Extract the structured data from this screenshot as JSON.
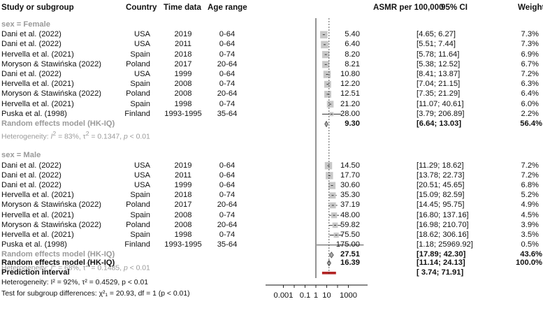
{
  "headers": {
    "study": "Study or subgroup",
    "country": "Country",
    "time": "Time data",
    "age": "Age range",
    "asmr": "ASMR per 100,000",
    "ci": "95% CI",
    "weight": "Weight"
  },
  "subgroups": [
    {
      "label": "sex = Female",
      "studies": [
        {
          "study": "Dani et al. (2022)",
          "country": "USA",
          "time": "2019",
          "age": "0-64",
          "est": "5.40",
          "ci_lo": "4.65",
          "ci_hi": "6.27",
          "weight": "7.3%",
          "est_val": 5.4,
          "lo_val": 4.65,
          "hi_val": 6.27,
          "w_val": 7.3
        },
        {
          "study": "Dani et al. (2022)",
          "country": "USA",
          "time": "2011",
          "age": "0-64",
          "est": "6.40",
          "ci_lo": "5.51",
          "ci_hi": "7.44",
          "weight": "7.3%",
          "est_val": 6.4,
          "lo_val": 5.51,
          "hi_val": 7.44,
          "w_val": 7.3
        },
        {
          "study": "Hervella et al. (2021)",
          "country": "Spain",
          "time": "2018",
          "age": "0-74",
          "est": "8.20",
          "ci_lo": "5.78",
          "ci_hi": "11.64",
          "weight": "6.9%",
          "est_val": 8.2,
          "lo_val": 5.78,
          "hi_val": 11.64,
          "w_val": 6.9
        },
        {
          "study": "Moryson & Stawińska (2022)",
          "country": "Poland",
          "time": "2017",
          "age": "20-64",
          "est": "8.21",
          "ci_lo": "5.38",
          "ci_hi": "12.52",
          "weight": "6.7%",
          "est_val": 8.21,
          "lo_val": 5.38,
          "hi_val": 12.52,
          "w_val": 6.7
        },
        {
          "study": "Dani et al. (2022)",
          "country": "USA",
          "time": "1999",
          "age": "0-64",
          "est": "10.80",
          "ci_lo": "8.41",
          "ci_hi": "13.87",
          "weight": "7.2%",
          "est_val": 10.8,
          "lo_val": 8.41,
          "hi_val": 13.87,
          "w_val": 7.2
        },
        {
          "study": "Hervella et al. (2021)",
          "country": "Spain",
          "time": "2008",
          "age": "0-74",
          "est": "12.20",
          "ci_lo": "7.04",
          "ci_hi": "21.15",
          "weight": "6.3%",
          "est_val": 12.2,
          "lo_val": 7.04,
          "hi_val": 21.15,
          "w_val": 6.3
        },
        {
          "study": "Moryson & Stawińska (2022)",
          "country": "Poland",
          "time": "2008",
          "age": "20-64",
          "est": "12.51",
          "ci_lo": "7.35",
          "ci_hi": "21.29",
          "weight": "6.4%",
          "est_val": 12.51,
          "lo_val": 7.35,
          "hi_val": 21.29,
          "w_val": 6.4
        },
        {
          "study": "Hervella et al. (2021)",
          "country": "Spain",
          "time": "1998",
          "age": "0-74",
          "est": "21.20",
          "ci_lo": "11.07",
          "ci_hi": "40.61",
          "weight": "6.0%",
          "est_val": 21.2,
          "lo_val": 11.07,
          "hi_val": 40.61,
          "w_val": 6.0
        },
        {
          "study": "Puska et al. (1998)",
          "country": "Finland",
          "time": "1993-1995",
          "age": "35-64",
          "est": "28.00",
          "ci_lo": "3.79",
          "ci_hi": "206.89",
          "weight": "2.2%",
          "est_val": 28.0,
          "lo_val": 3.79,
          "hi_val": 206.89,
          "w_val": 2.2
        }
      ],
      "model": {
        "label": "Random effects model (HK-IQ)",
        "est": "9.30",
        "ci_lo": "6.64",
        "ci_hi": "13.03",
        "weight": "56.4%",
        "est_val": 9.3,
        "lo_val": 6.64,
        "hi_val": 13.03
      },
      "het_prefix": "Heterogeneity: ",
      "het_i2": "I",
      "het_i2_val": " = 83%, τ",
      "het_tau": " = 0.1347, ",
      "het_p": "p",
      "het_p_val": " < 0.01"
    },
    {
      "label": "sex = Male",
      "studies": [
        {
          "study": "Dani et al. (2022)",
          "country": "USA",
          "time": "2019",
          "age": "0-64",
          "est": "14.50",
          "ci_lo": "11.29",
          "ci_hi": "18.62",
          "weight": "7.2%",
          "est_val": 14.5,
          "lo_val": 11.29,
          "hi_val": 18.62,
          "w_val": 7.2
        },
        {
          "study": "Dani et al. (2022)",
          "country": "USA",
          "time": "2011",
          "age": "0-64",
          "est": "17.70",
          "ci_lo": "13.78",
          "ci_hi": "22.73",
          "weight": "7.2%",
          "est_val": 17.7,
          "lo_val": 13.78,
          "hi_val": 22.73,
          "w_val": 7.2
        },
        {
          "study": "Dani et al. (2022)",
          "country": "USA",
          "time": "1999",
          "age": "0-64",
          "est": "30.60",
          "ci_lo": "20.51",
          "ci_hi": "45.65",
          "weight": "6.8%",
          "est_val": 30.6,
          "lo_val": 20.51,
          "hi_val": 45.65,
          "w_val": 6.8
        },
        {
          "study": "Hervella et al. (2021)",
          "country": "Spain",
          "time": "2018",
          "age": "0-74",
          "est": "35.30",
          "ci_lo": "15.09",
          "ci_hi": "82.59",
          "weight": "5.2%",
          "est_val": 35.3,
          "lo_val": 15.09,
          "hi_val": 82.59,
          "w_val": 5.2
        },
        {
          "study": "Moryson & Stawińska (2022)",
          "country": "Poland",
          "time": "2017",
          "age": "20-64",
          "est": "37.19",
          "ci_lo": "14.45",
          "ci_hi": "95.75",
          "weight": "4.9%",
          "est_val": 37.19,
          "lo_val": 14.45,
          "hi_val": 95.75,
          "w_val": 4.9
        },
        {
          "study": "Hervella et al. (2021)",
          "country": "Spain",
          "time": "2008",
          "age": "0-74",
          "est": "48.00",
          "ci_lo": "16.80",
          "ci_hi": "137.16",
          "weight": "4.5%",
          "est_val": 48.0,
          "lo_val": 16.8,
          "hi_val": 137.16,
          "w_val": 4.5
        },
        {
          "study": "Moryson & Stawińska (2022)",
          "country": "Poland",
          "time": "2008",
          "age": "20-64",
          "est": "59.82",
          "ci_lo": "16.98",
          "ci_hi": "210.70",
          "weight": "3.9%",
          "est_val": 59.82,
          "lo_val": 16.98,
          "hi_val": 210.7,
          "w_val": 3.9
        },
        {
          "study": "Hervella et al. (2021)",
          "country": "Spain",
          "time": "1998",
          "age": "0-74",
          "est": "75.50",
          "ci_lo": "18.62",
          "ci_hi": "306.16",
          "weight": "3.5%",
          "est_val": 75.5,
          "lo_val": 18.62,
          "hi_val": 306.16,
          "w_val": 3.5
        },
        {
          "study": "Puska et al. (1998)",
          "country": "Finland",
          "time": "1993-1995",
          "age": "35-64",
          "est": "175.00",
          "ci_lo": "1.18",
          "ci_hi": "25969.92",
          "weight": "0.5%",
          "est_val": 175.0,
          "lo_val": 1.18,
          "hi_val": 25969.92,
          "w_val": 0.5
        }
      ],
      "model": {
        "label": "Random effects model (HK-IQ)",
        "est": "27.51",
        "ci_lo": "17.89",
        "ci_hi": "42.30",
        "weight": "43.6%",
        "est_val": 27.51,
        "lo_val": 17.89,
        "hi_val": 42.3
      },
      "het_prefix": "Heterogeneity: ",
      "het_i2": "I",
      "het_i2_val": " = 68%, τ",
      "het_tau": " = 0.1485, ",
      "het_p": "p",
      "het_p_val": " < 0.01"
    }
  ],
  "overall": {
    "label": "Random effects model (HK-IQ)",
    "est": "16.39",
    "ci_lo": "11.14",
    "ci_hi": "24.13",
    "weight": "100.0%",
    "est_val": 16.39,
    "lo_val": 11.14,
    "hi_val": 24.13
  },
  "prediction": {
    "label": "Prediction interval",
    "ci_lo": "3.74",
    "ci_hi": "71.91",
    "lo_val": 3.74,
    "hi_val": 71.91
  },
  "overall_het": "Heterogeneity: I² = 92%, τ² = 0.4529, p < 0.01",
  "subgroup_test": "Test for subgroup differences: χ²₁ = 20.93, df = 1 (p < 0.01)",
  "colors": {
    "grey": "#9a9a9a",
    "box": "#c8c8c8",
    "prediction": "#b22222",
    "text": "#111111"
  },
  "chart_data": {
    "type": "forest",
    "x_scale": "log",
    "x_ticks": [
      "0.001",
      "0.1",
      "1",
      "10",
      "1000"
    ],
    "x_tick_values": [
      0.001,
      0.1,
      1,
      10,
      1000
    ],
    "null_value": 1,
    "overall_estimate": 16.39,
    "series": [
      {
        "name": "sex = Female",
        "estimates": [
          5.4,
          6.4,
          8.2,
          8.21,
          10.8,
          12.2,
          12.51,
          21.2,
          28.0
        ],
        "pooled": 9.3
      },
      {
        "name": "sex = Male",
        "estimates": [
          14.5,
          17.7,
          30.6,
          35.3,
          37.19,
          48.0,
          59.82,
          75.5,
          175.0
        ],
        "pooled": 27.51
      }
    ]
  }
}
